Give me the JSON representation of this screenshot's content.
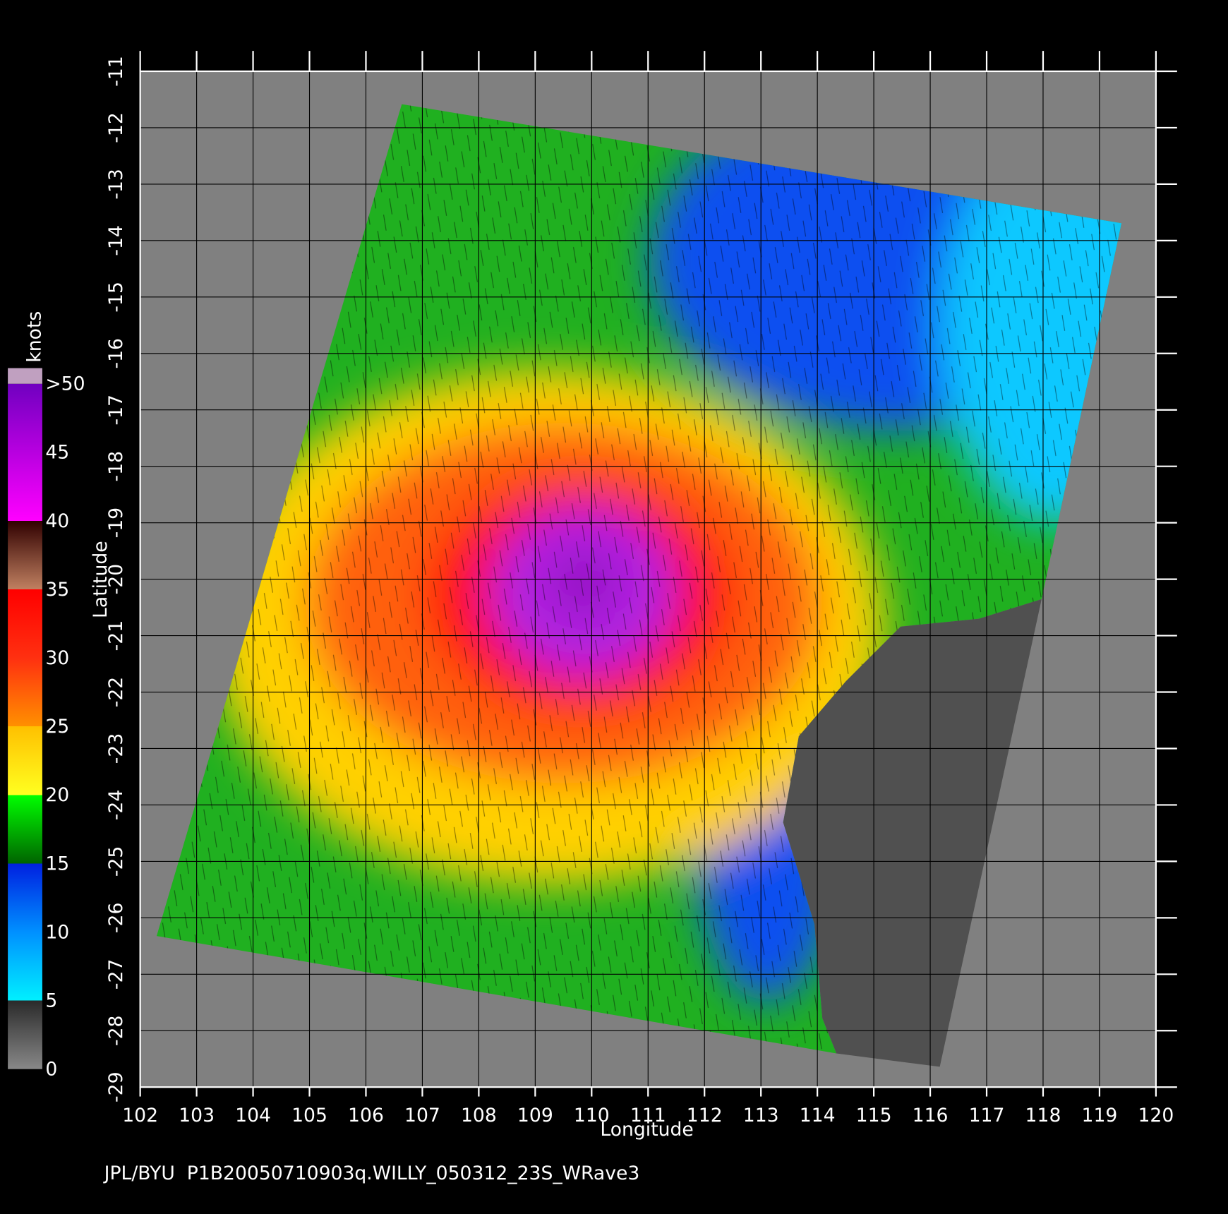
{
  "map": {
    "xlabel": "Longitude",
    "ylabel": "Latitude",
    "xlim": [
      102,
      120
    ],
    "ylim": [
      -11,
      -29
    ],
    "xticks": [
      102,
      103,
      104,
      105,
      106,
      107,
      108,
      109,
      110,
      111,
      112,
      113,
      114,
      115,
      116,
      117,
      118,
      119,
      120
    ],
    "yticks": [
      -11,
      -12,
      -13,
      -14,
      -15,
      -16,
      -17,
      -18,
      -19,
      -20,
      -21,
      -22,
      -23,
      -24,
      -25,
      -26,
      -27,
      -28,
      -29
    ],
    "colorbar": {
      "title": "knots",
      "clim": [
        0,
        50
      ],
      "ticks": [
        0,
        5,
        10,
        15,
        20,
        25,
        30,
        35,
        40,
        45,
        {
          "value": 50,
          "label": ">50"
        }
      ]
    },
    "footer": "JPL/BYU  P1B20050710903q.WILLY_050312_23S_WRave3"
  }
}
